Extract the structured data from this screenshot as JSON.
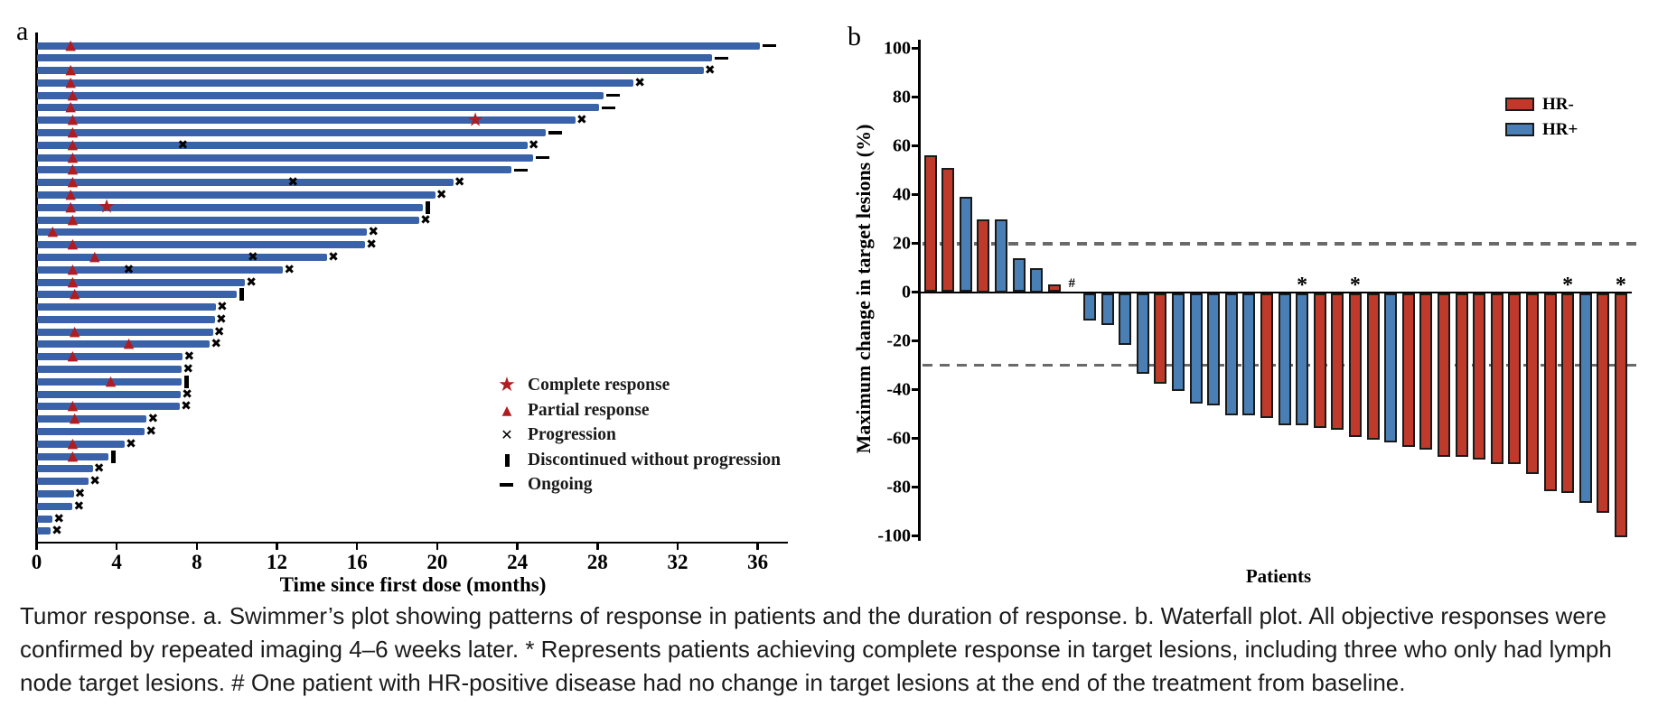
{
  "figure": {
    "panel_a_label": "a",
    "panel_b_label": "b",
    "caption_lines": [
      "Tumor response. a. Swimmer’s plot showing patterns of response in patients and the duration of response. b. Waterfall plot. All objective responses were",
      "confirmed by repeated imaging 4–6 weeks later. * Represents patients achieving complete response in target lesions, including three who only had lymph",
      "node target lesions. # One patient with HR-positive disease had no change in target lesions at the end of the treatment from baseline."
    ]
  },
  "chart_data": [
    {
      "type": "swimmer-bar",
      "title": "Swimmer's plot: duration of treatment and response",
      "xlabel": "Time since first dose (months)",
      "x_ticks": [
        0,
        4,
        8,
        12,
        16,
        20,
        24,
        28,
        32,
        36
      ],
      "xlim": [
        0,
        37.5
      ],
      "bar_color": "#3a62a8",
      "marker_red": "#b01c20",
      "marker_black": "#000000",
      "legend": [
        {
          "marker": "star",
          "label": "Complete response"
        },
        {
          "marker": "triangle",
          "label": "Partial response"
        },
        {
          "marker": "x",
          "label": "Progression"
        },
        {
          "marker": "vbar",
          "label": "Discontinued without progression"
        },
        {
          "marker": "dash",
          "label": "Ongoing"
        }
      ],
      "patients": [
        {
          "duration": 36.1,
          "partial_response_at": 1.7,
          "complete_response_at": null,
          "progression_at": [],
          "end": "ongoing"
        },
        {
          "duration": 33.7,
          "partial_response_at": null,
          "complete_response_at": null,
          "progression_at": [],
          "end": "ongoing"
        },
        {
          "duration": 33.3,
          "partial_response_at": 1.7,
          "complete_response_at": null,
          "progression_at": [],
          "end": "progression"
        },
        {
          "duration": 29.8,
          "partial_response_at": 1.7,
          "complete_response_at": null,
          "progression_at": [],
          "end": "progression"
        },
        {
          "duration": 28.3,
          "partial_response_at": 1.8,
          "complete_response_at": null,
          "progression_at": [],
          "end": "ongoing"
        },
        {
          "duration": 28.1,
          "partial_response_at": 1.7,
          "complete_response_at": null,
          "progression_at": [],
          "end": "ongoing"
        },
        {
          "duration": 26.9,
          "partial_response_at": 1.8,
          "complete_response_at": 21.9,
          "progression_at": [],
          "end": "progression"
        },
        {
          "duration": 25.4,
          "partial_response_at": 1.8,
          "complete_response_at": null,
          "progression_at": [],
          "end": "ongoing"
        },
        {
          "duration": 24.5,
          "partial_response_at": 1.8,
          "complete_response_at": null,
          "progression_at": [
            7.3
          ],
          "end": "progression"
        },
        {
          "duration": 24.8,
          "partial_response_at": 1.8,
          "complete_response_at": null,
          "progression_at": [],
          "end": "ongoing"
        },
        {
          "duration": 23.7,
          "partial_response_at": 1.8,
          "complete_response_at": null,
          "progression_at": [],
          "end": "ongoing"
        },
        {
          "duration": 20.8,
          "partial_response_at": 1.8,
          "complete_response_at": null,
          "progression_at": [
            12.8
          ],
          "end": "progression"
        },
        {
          "duration": 19.9,
          "partial_response_at": 1.7,
          "complete_response_at": null,
          "progression_at": [],
          "end": "progression"
        },
        {
          "duration": 19.3,
          "partial_response_at": 1.7,
          "complete_response_at": 3.5,
          "progression_at": [],
          "end": "discontinued"
        },
        {
          "duration": 19.1,
          "partial_response_at": 1.8,
          "complete_response_at": null,
          "progression_at": [],
          "end": "progression"
        },
        {
          "duration": 16.5,
          "partial_response_at": 0.8,
          "complete_response_at": null,
          "progression_at": [],
          "end": "progression"
        },
        {
          "duration": 16.4,
          "partial_response_at": 1.8,
          "complete_response_at": null,
          "progression_at": [],
          "end": "progression"
        },
        {
          "duration": 14.5,
          "partial_response_at": 2.9,
          "complete_response_at": null,
          "progression_at": [
            10.8
          ],
          "end": "progression"
        },
        {
          "duration": 12.3,
          "partial_response_at": 1.8,
          "complete_response_at": null,
          "progression_at": [
            4.6
          ],
          "end": "progression"
        },
        {
          "duration": 10.4,
          "partial_response_at": 1.8,
          "complete_response_at": null,
          "progression_at": [],
          "end": "progression"
        },
        {
          "duration": 10.0,
          "partial_response_at": 1.9,
          "complete_response_at": null,
          "progression_at": [],
          "end": "discontinued"
        },
        {
          "duration": 8.95,
          "partial_response_at": null,
          "complete_response_at": null,
          "progression_at": [],
          "end": "progression"
        },
        {
          "duration": 8.9,
          "partial_response_at": null,
          "complete_response_at": null,
          "progression_at": [],
          "end": "progression"
        },
        {
          "duration": 8.8,
          "partial_response_at": 1.9,
          "complete_response_at": null,
          "progression_at": [],
          "end": "progression"
        },
        {
          "duration": 8.65,
          "partial_response_at": 4.6,
          "complete_response_at": null,
          "progression_at": [],
          "end": "progression"
        },
        {
          "duration": 7.3,
          "partial_response_at": 1.8,
          "complete_response_at": null,
          "progression_at": [],
          "end": "progression"
        },
        {
          "duration": 7.25,
          "partial_response_at": null,
          "complete_response_at": null,
          "progression_at": [],
          "end": "progression"
        },
        {
          "duration": 7.25,
          "partial_response_at": 3.7,
          "complete_response_at": null,
          "progression_at": [],
          "end": "discontinued"
        },
        {
          "duration": 7.2,
          "partial_response_at": null,
          "complete_response_at": null,
          "progression_at": [],
          "end": "progression"
        },
        {
          "duration": 7.15,
          "partial_response_at": 1.8,
          "complete_response_at": null,
          "progression_at": [],
          "end": "progression"
        },
        {
          "duration": 5.5,
          "partial_response_at": 1.9,
          "complete_response_at": null,
          "progression_at": [],
          "end": "progression"
        },
        {
          "duration": 5.4,
          "partial_response_at": null,
          "complete_response_at": null,
          "progression_at": [],
          "end": "progression"
        },
        {
          "duration": 4.4,
          "partial_response_at": 1.8,
          "complete_response_at": null,
          "progression_at": [],
          "end": "progression"
        },
        {
          "duration": 3.6,
          "partial_response_at": 1.8,
          "complete_response_at": null,
          "progression_at": [],
          "end": "discontinued"
        },
        {
          "duration": 2.8,
          "partial_response_at": null,
          "complete_response_at": null,
          "progression_at": [],
          "end": "progression"
        },
        {
          "duration": 2.6,
          "partial_response_at": null,
          "complete_response_at": null,
          "progression_at": [],
          "end": "progression"
        },
        {
          "duration": 1.85,
          "partial_response_at": null,
          "complete_response_at": null,
          "progression_at": [],
          "end": "progression"
        },
        {
          "duration": 1.8,
          "partial_response_at": null,
          "complete_response_at": null,
          "progression_at": [],
          "end": "progression"
        },
        {
          "duration": 0.8,
          "partial_response_at": null,
          "complete_response_at": null,
          "progression_at": [],
          "end": "progression"
        },
        {
          "duration": 0.7,
          "partial_response_at": null,
          "complete_response_at": null,
          "progression_at": [],
          "end": "progression"
        }
      ]
    },
    {
      "type": "waterfall-bar",
      "title": "Waterfall plot: maximum change in target lesions",
      "xlabel": "Patients",
      "ylabel": "Maximum change in target lesions (%)",
      "ylim": [
        -100,
        100
      ],
      "y_ticks": [
        100,
        80,
        60,
        40,
        20,
        0,
        -20,
        -40,
        -60,
        -80,
        -100
      ],
      "thresholds": [
        20,
        -30
      ],
      "threshold_color": "#6a6a6a",
      "legend": [
        {
          "label": "HR-",
          "color": "#c03a2b"
        },
        {
          "label": "HR+",
          "color": "#4a7fb5"
        }
      ],
      "bars": [
        {
          "value": 56,
          "group": "HR-",
          "mark": null
        },
        {
          "value": 51,
          "group": "HR-",
          "mark": null
        },
        {
          "value": 39,
          "group": "HR+",
          "mark": null
        },
        {
          "value": 30,
          "group": "HR-",
          "mark": null
        },
        {
          "value": 30,
          "group": "HR+",
          "mark": null
        },
        {
          "value": 14,
          "group": "HR+",
          "mark": null
        },
        {
          "value": 10,
          "group": "HR+",
          "mark": null
        },
        {
          "value": 3,
          "group": "HR-",
          "mark": null
        },
        {
          "value": 0,
          "group": "HR+",
          "mark": "#"
        },
        {
          "value": -11,
          "group": "HR+",
          "mark": null
        },
        {
          "value": -13,
          "group": "HR+",
          "mark": null
        },
        {
          "value": -21,
          "group": "HR+",
          "mark": null
        },
        {
          "value": -33,
          "group": "HR+",
          "mark": null
        },
        {
          "value": -37,
          "group": "HR-",
          "mark": null
        },
        {
          "value": -40,
          "group": "HR+",
          "mark": null
        },
        {
          "value": -45,
          "group": "HR+",
          "mark": null
        },
        {
          "value": -46,
          "group": "HR+",
          "mark": null
        },
        {
          "value": -50,
          "group": "HR+",
          "mark": null
        },
        {
          "value": -50,
          "group": "HR+",
          "mark": null
        },
        {
          "value": -51,
          "group": "HR-",
          "mark": null
        },
        {
          "value": -54,
          "group": "HR+",
          "mark": null
        },
        {
          "value": -54,
          "group": "HR+",
          "mark": "*"
        },
        {
          "value": -55,
          "group": "HR-",
          "mark": null
        },
        {
          "value": -56,
          "group": "HR-",
          "mark": null
        },
        {
          "value": -59,
          "group": "HR-",
          "mark": "*"
        },
        {
          "value": -60,
          "group": "HR-",
          "mark": null
        },
        {
          "value": -61,
          "group": "HR+",
          "mark": null
        },
        {
          "value": -63,
          "group": "HR-",
          "mark": null
        },
        {
          "value": -64,
          "group": "HR-",
          "mark": null
        },
        {
          "value": -67,
          "group": "HR-",
          "mark": null
        },
        {
          "value": -67,
          "group": "HR-",
          "mark": null
        },
        {
          "value": -68,
          "group": "HR-",
          "mark": null
        },
        {
          "value": -70,
          "group": "HR-",
          "mark": null
        },
        {
          "value": -70,
          "group": "HR-",
          "mark": null
        },
        {
          "value": -74,
          "group": "HR-",
          "mark": null
        },
        {
          "value": -81,
          "group": "HR-",
          "mark": null
        },
        {
          "value": -82,
          "group": "HR-",
          "mark": "*"
        },
        {
          "value": -86,
          "group": "HR+",
          "mark": null
        },
        {
          "value": -90,
          "group": "HR-",
          "mark": null
        },
        {
          "value": -100,
          "group": "HR-",
          "mark": "*"
        }
      ]
    }
  ]
}
